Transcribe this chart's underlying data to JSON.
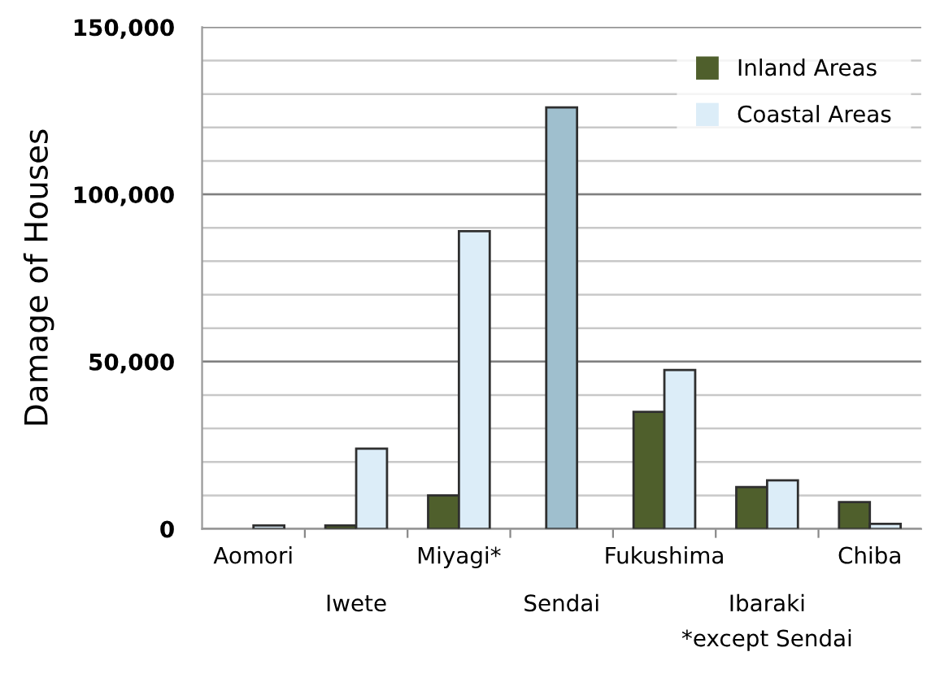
{
  "chart_data": {
    "type": "bar",
    "ylabel": "Damage of Houses",
    "categories": [
      "Aomori",
      "Iwete",
      "Miyagi*",
      "Sendai",
      "Fukushima",
      "Ibaraki",
      "Chiba"
    ],
    "series": [
      {
        "name": "Inland Areas",
        "color": "#4f5f2c",
        "values": [
          null,
          1000,
          10000,
          null,
          35000,
          12500,
          8000
        ]
      },
      {
        "name": "Coastal Areas",
        "color": "#dcedf8",
        "values": [
          1000,
          24000,
          89000,
          null,
          47500,
          14500,
          1500
        ]
      },
      {
        "color": "#9fbfce",
        "values": [
          null,
          null,
          null,
          126000,
          null,
          null,
          null
        ]
      }
    ],
    "ylim": [
      0,
      150000
    ],
    "yticks": [
      {
        "value": 0,
        "label": "0"
      },
      {
        "value": 10000,
        "label": null
      },
      {
        "value": 20000,
        "label": null
      },
      {
        "value": 30000,
        "label": null
      },
      {
        "value": 40000,
        "label": null
      },
      {
        "value": 50000,
        "label": "50,000"
      },
      {
        "value": 60000,
        "label": null
      },
      {
        "value": 70000,
        "label": null
      },
      {
        "value": 80000,
        "label": null
      },
      {
        "value": 90000,
        "label": null
      },
      {
        "value": 100000,
        "label": "100,000"
      },
      {
        "value": 110000,
        "label": null
      },
      {
        "value": 120000,
        "label": null
      },
      {
        "value": 130000,
        "label": null
      },
      {
        "value": 140000,
        "label": null
      },
      {
        "value": 150000,
        "label": "150,000"
      }
    ],
    "grid": "y",
    "legend": "top right",
    "annotations": [
      "*except Sendai"
    ]
  }
}
